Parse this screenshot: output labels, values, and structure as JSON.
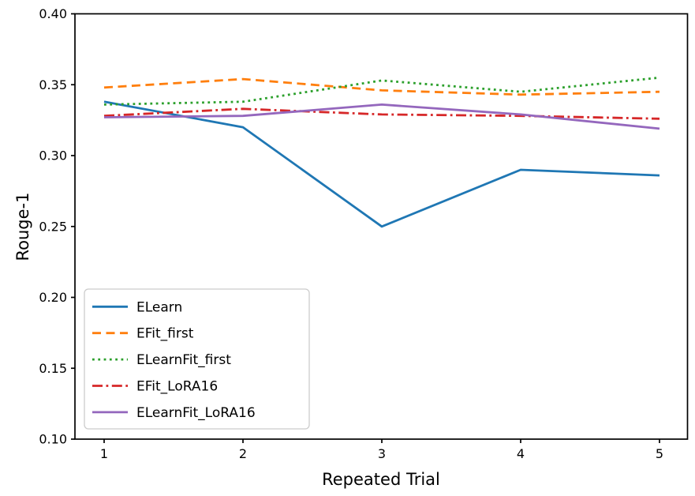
{
  "chart_data": {
    "type": "line",
    "title": "",
    "xlabel": "Repeated Trial",
    "ylabel": "Rouge-1",
    "x": [
      1,
      2,
      3,
      4,
      5
    ],
    "xticks": [
      "1",
      "2",
      "3",
      "4",
      "5"
    ],
    "yticks": [
      "0.10",
      "0.15",
      "0.20",
      "0.25",
      "0.30",
      "0.35",
      "0.40"
    ],
    "ylim": [
      0.1,
      0.4
    ],
    "xlim": [
      0.79,
      5.2
    ],
    "grid": false,
    "legend_position": "lower left",
    "background_color": "#ffffff",
    "axis_color": "#000000",
    "legend_border_color": "#cccccc",
    "series": [
      {
        "name": "ELearn",
        "color": "#1f77b4",
        "style": "solid",
        "values": [
          0.338,
          0.32,
          0.25,
          0.29,
          0.286
        ]
      },
      {
        "name": "EFit_first",
        "color": "#ff7f0e",
        "style": "dashed",
        "values": [
          0.348,
          0.354,
          0.346,
          0.343,
          0.345
        ]
      },
      {
        "name": "ELearnFit_first",
        "color": "#2ca02c",
        "style": "dotted",
        "values": [
          0.336,
          0.338,
          0.353,
          0.345,
          0.355
        ]
      },
      {
        "name": "EFit_LoRA16",
        "color": "#d62728",
        "style": "dashdot",
        "values": [
          0.328,
          0.333,
          0.329,
          0.328,
          0.326
        ]
      },
      {
        "name": "ELearnFit_LoRA16",
        "color": "#9467bd",
        "style": "solid",
        "values": [
          0.327,
          0.328,
          0.336,
          0.329,
          0.319
        ]
      }
    ]
  }
}
